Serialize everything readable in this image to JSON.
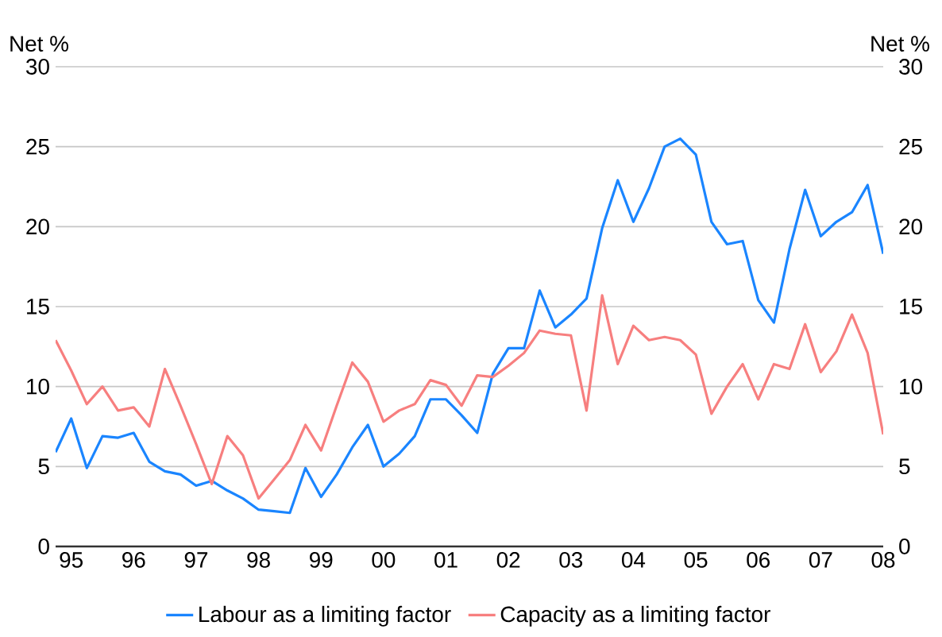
{
  "chart_data": {
    "type": "line",
    "ylabel": "Net %",
    "y2label": "Net %",
    "categories": [
      null,
      "95",
      null,
      null,
      null,
      "96",
      null,
      null,
      null,
      "97",
      null,
      null,
      null,
      "98",
      null,
      null,
      null,
      "99",
      null,
      null,
      null,
      "00",
      null,
      null,
      null,
      "01",
      null,
      null,
      null,
      "02",
      null,
      null,
      null,
      "03",
      null,
      null,
      null,
      "04",
      null,
      null,
      null,
      "05",
      null,
      null,
      null,
      "06",
      null,
      null,
      null,
      "07",
      null,
      null,
      null,
      "08"
    ],
    "series": [
      {
        "name": "Labour as a limiting factor",
        "color": "#1a85ff",
        "values": [
          5.9,
          8.0,
          4.9,
          6.9,
          6.8,
          7.1,
          5.3,
          4.7,
          4.5,
          3.8,
          4.1,
          3.5,
          3.0,
          2.3,
          2.2,
          2.1,
          4.9,
          3.1,
          4.5,
          6.2,
          7.6,
          5.0,
          5.8,
          6.9,
          9.2,
          9.2,
          8.2,
          7.1,
          10.8,
          12.4,
          12.4,
          16.0,
          13.7,
          14.5,
          15.5,
          19.9,
          22.9,
          20.3,
          22.4,
          25.0,
          25.5,
          24.5,
          20.3,
          18.9,
          19.1,
          15.4,
          14.0,
          18.6,
          22.3,
          19.4,
          20.3,
          20.9,
          22.6,
          18.3
        ]
      },
      {
        "name": "Capacity as a limiting factor",
        "color": "#f77f7f",
        "values": [
          12.9,
          11.0,
          8.9,
          10.0,
          8.5,
          8.7,
          7.5,
          11.1,
          8.8,
          6.4,
          3.9,
          6.9,
          5.7,
          3.0,
          4.2,
          5.4,
          7.6,
          6.0,
          8.8,
          11.5,
          10.3,
          7.8,
          8.5,
          8.9,
          10.4,
          10.1,
          8.8,
          10.7,
          10.6,
          11.3,
          12.1,
          13.5,
          13.3,
          13.2,
          8.5,
          15.7,
          11.4,
          13.8,
          12.9,
          13.1,
          12.9,
          12.0,
          8.3,
          10.0,
          11.4,
          9.2,
          11.4,
          11.1,
          13.9,
          10.9,
          12.2,
          14.5,
          12.1,
          7.0
        ]
      }
    ],
    "ylim": [
      0,
      30
    ],
    "yticks": [
      0,
      5,
      10,
      15,
      20,
      25,
      30
    ],
    "y2lim": [
      0,
      30
    ],
    "y2ticks": [
      0,
      5,
      10,
      15,
      20,
      25,
      30
    ],
    "grid": "y",
    "legend": "bottom"
  }
}
